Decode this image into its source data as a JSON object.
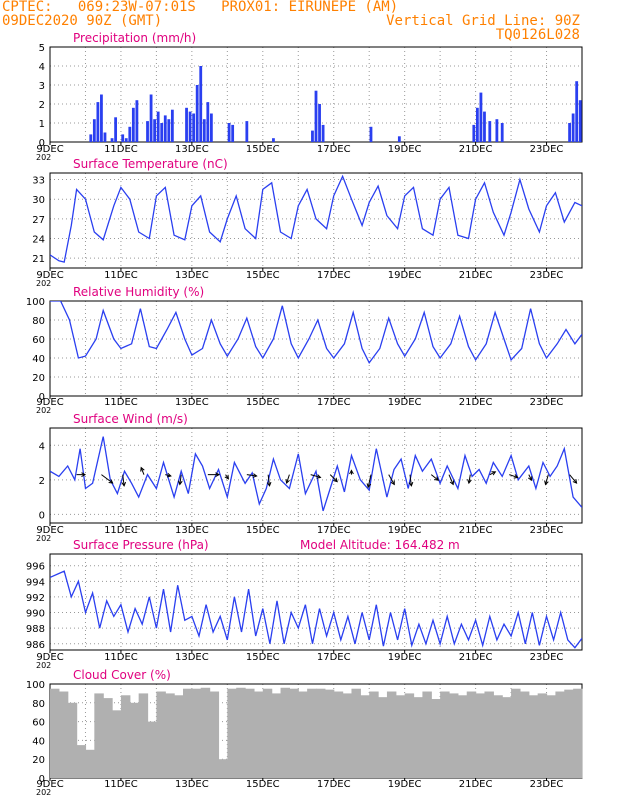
{
  "header": {
    "line1": "CPTEC:   069:23W-07:01S   PROX01: EIRUNEPE (AM)",
    "line2_left": "09DEC2020 90Z (GMT)",
    "line2_right": "Vertical Grid Line: 90Z",
    "line3_right": "TQ0126L028"
  },
  "colors": {
    "header": "#ff8000",
    "title": "#e0007f",
    "line": "#2a3ff0",
    "bar": "#2a3ff0",
    "cloud": "#b0b0b0",
    "grid": "#999999"
  },
  "x_axis": {
    "ticks": [
      "9DEC",
      "11DEC",
      "13DEC",
      "15DEC",
      "17DEC",
      "19DEC",
      "21DEC",
      "23DEC"
    ],
    "days_range": [
      0,
      15
    ],
    "year_fragment": "202"
  },
  "chart_data": [
    {
      "id": "precip",
      "type": "bar",
      "title": "Precipitation (mm/h)",
      "ylim": [
        0,
        5
      ],
      "yticks": [
        0,
        1,
        2,
        3,
        4,
        5
      ],
      "x_unit": "days after 9DEC 00Z",
      "x": [
        1.15,
        1.25,
        1.35,
        1.45,
        1.55,
        1.75,
        1.85,
        2.05,
        2.15,
        2.25,
        2.35,
        2.45,
        2.75,
        2.85,
        2.95,
        3.05,
        3.15,
        3.25,
        3.35,
        3.45,
        3.85,
        3.95,
        4.05,
        4.15,
        4.25,
        4.35,
        4.45,
        4.55,
        5.05,
        5.15,
        5.55,
        6.3,
        7.4,
        7.5,
        7.6,
        7.7,
        9.05,
        9.85,
        11.95,
        12.05,
        12.15,
        12.25,
        12.4,
        12.6,
        12.75,
        14.65,
        14.75,
        14.85,
        14.95
      ],
      "values": [
        0.4,
        1.2,
        2.1,
        2.5,
        0.5,
        0.2,
        1.3,
        0.4,
        0.2,
        0.8,
        1.8,
        2.2,
        1.1,
        2.5,
        1.2,
        1.6,
        1.0,
        1.4,
        1.2,
        1.7,
        1.8,
        1.6,
        1.5,
        3.0,
        4.0,
        1.2,
        2.1,
        1.5,
        1.0,
        0.9,
        1.1,
        0.2,
        0.6,
        2.7,
        2.0,
        0.9,
        0.8,
        0.3,
        0.9,
        1.8,
        2.6,
        1.6,
        1.1,
        1.2,
        1.0,
        1.0,
        1.5,
        3.2,
        2.2
      ]
    },
    {
      "id": "temp",
      "type": "line",
      "title": "Surface Temperature (nC)",
      "ylim": [
        19.5,
        34
      ],
      "yticks": [
        21,
        24,
        27,
        30,
        33
      ],
      "x_unit": "days after 9DEC 00Z",
      "x": [
        0.0,
        0.25,
        0.4,
        0.6,
        0.75,
        1.0,
        1.25,
        1.5,
        1.8,
        2.0,
        2.25,
        2.5,
        2.8,
        3.0,
        3.25,
        3.5,
        3.8,
        4.0,
        4.25,
        4.5,
        4.8,
        5.0,
        5.25,
        5.5,
        5.8,
        6.0,
        6.25,
        6.5,
        6.8,
        7.0,
        7.25,
        7.5,
        7.8,
        8.0,
        8.25,
        8.5,
        8.8,
        9.0,
        9.25,
        9.5,
        9.8,
        10.0,
        10.25,
        10.5,
        10.8,
        11.0,
        11.25,
        11.5,
        11.8,
        12.0,
        12.25,
        12.5,
        12.8,
        13.0,
        13.25,
        13.5,
        13.8,
        14.0,
        14.25,
        14.5,
        14.8,
        15.0
      ],
      "values": [
        21.5,
        20.6,
        20.4,
        26.0,
        31.5,
        30.0,
        25.0,
        23.8,
        29.0,
        31.8,
        30.0,
        25.0,
        24.0,
        30.5,
        31.8,
        24.5,
        23.8,
        29.0,
        30.5,
        25.0,
        23.5,
        27.0,
        30.5,
        25.5,
        24.0,
        31.5,
        32.5,
        25.0,
        24.0,
        29.0,
        31.5,
        27.0,
        25.5,
        30.5,
        33.5,
        30.0,
        26.0,
        29.5,
        32.0,
        27.5,
        25.5,
        30.5,
        31.8,
        25.5,
        24.5,
        30.0,
        31.8,
        24.5,
        24.0,
        30.0,
        32.5,
        28.0,
        24.5,
        28.0,
        33.0,
        28.5,
        25.0,
        29.0,
        31.0,
        26.5,
        29.5,
        29.0
      ]
    },
    {
      "id": "rh",
      "type": "line",
      "title": "Relative Humidity (%)",
      "ylim": [
        0,
        100
      ],
      "yticks": [
        0,
        20,
        40,
        60,
        80,
        100
      ],
      "x_unit": "days after 9DEC 00Z",
      "x": [
        0.0,
        0.3,
        0.55,
        0.8,
        1.0,
        1.3,
        1.5,
        1.8,
        2.0,
        2.3,
        2.55,
        2.8,
        3.0,
        3.3,
        3.55,
        3.8,
        4.0,
        4.3,
        4.55,
        4.8,
        5.0,
        5.3,
        5.55,
        5.8,
        6.0,
        6.3,
        6.55,
        6.8,
        7.0,
        7.3,
        7.55,
        7.8,
        8.0,
        8.3,
        8.55,
        8.8,
        9.0,
        9.3,
        9.55,
        9.8,
        10.0,
        10.3,
        10.55,
        10.8,
        11.0,
        11.3,
        11.55,
        11.8,
        12.0,
        12.3,
        12.55,
        12.8,
        13.0,
        13.3,
        13.55,
        13.8,
        14.0,
        14.3,
        14.55,
        14.8,
        15.0
      ],
      "values": [
        100,
        100,
        80,
        40,
        42,
        60,
        90,
        60,
        50,
        55,
        92,
        52,
        50,
        70,
        88,
        60,
        43,
        50,
        80,
        55,
        42,
        60,
        82,
        52,
        40,
        60,
        95,
        55,
        40,
        60,
        80,
        50,
        40,
        55,
        88,
        50,
        35,
        50,
        82,
        55,
        42,
        60,
        88,
        52,
        40,
        55,
        84,
        52,
        38,
        55,
        88,
        60,
        38,
        50,
        92,
        55,
        40,
        55,
        70,
        55,
        65
      ]
    },
    {
      "id": "wind",
      "type": "line",
      "title": "Surface Wind (m/s)",
      "ylim": [
        -0.5,
        5
      ],
      "yticks": [
        0,
        2,
        4
      ],
      "x_unit": "days after 9DEC 00Z",
      "x": [
        0.0,
        0.25,
        0.5,
        0.7,
        0.85,
        1.0,
        1.2,
        1.5,
        1.7,
        1.9,
        2.1,
        2.3,
        2.5,
        2.75,
        3.0,
        3.2,
        3.5,
        3.7,
        3.9,
        4.1,
        4.3,
        4.5,
        4.75,
        5.0,
        5.2,
        5.5,
        5.7,
        5.9,
        6.1,
        6.3,
        6.5,
        6.75,
        7.0,
        7.2,
        7.5,
        7.7,
        7.9,
        8.1,
        8.3,
        8.5,
        8.75,
        9.0,
        9.2,
        9.5,
        9.7,
        9.9,
        10.1,
        10.3,
        10.5,
        10.75,
        11.0,
        11.2,
        11.5,
        11.7,
        11.9,
        12.1,
        12.3,
        12.5,
        12.75,
        13.0,
        13.2,
        13.5,
        13.7,
        13.9,
        14.1,
        14.3,
        14.5,
        14.75,
        15.0
      ],
      "values": [
        2.5,
        2.2,
        2.8,
        2.0,
        3.8,
        1.5,
        1.8,
        4.5,
        2.0,
        1.2,
        2.5,
        1.8,
        1.0,
        2.3,
        1.5,
        3.0,
        1.0,
        2.5,
        1.2,
        3.5,
        2.8,
        1.5,
        2.6,
        1.0,
        3.0,
        1.8,
        2.4,
        0.6,
        1.5,
        3.2,
        2.0,
        1.5,
        3.5,
        1.2,
        2.5,
        0.2,
        1.5,
        2.8,
        1.3,
        3.4,
        2.0,
        1.4,
        3.8,
        1.0,
        2.6,
        3.2,
        1.5,
        3.4,
        2.5,
        3.2,
        1.8,
        2.8,
        1.5,
        3.4,
        2.2,
        2.6,
        1.8,
        3.0,
        2.2,
        3.4,
        2.0,
        2.8,
        1.5,
        3.0,
        2.2,
        2.8,
        3.8,
        1.0,
        0.4
      ],
      "vectors_x": [
        0.75,
        1.45,
        2.05,
        2.65,
        3.25,
        3.7,
        4.45,
        4.95,
        5.55,
        6.15,
        6.75,
        7.35,
        7.9,
        8.5,
        9.05,
        9.55,
        10.15,
        10.75,
        11.25,
        11.85,
        12.4,
        12.95,
        13.5,
        14.05,
        14.65
      ],
      "vectors_u": [
        0.6,
        0.8,
        0.1,
        -0.2,
        0.4,
        -0.1,
        0.8,
        0.2,
        0.7,
        0.1,
        -0.2,
        0.7,
        0.5,
        0.0,
        -0.2,
        0.4,
        0.1,
        0.5,
        0.3,
        -0.1,
        0.4,
        0.6,
        0.2,
        -0.2,
        0.5
      ],
      "vectors_v": [
        0.0,
        -0.6,
        -0.8,
        0.5,
        -0.1,
        -0.7,
        0.0,
        -0.3,
        -0.1,
        -0.8,
        -0.6,
        -0.2,
        -0.5,
        0.3,
        -0.9,
        -0.7,
        -0.8,
        -0.4,
        -0.7,
        -0.6,
        0.2,
        -0.2,
        -0.4,
        -0.7,
        -0.6
      ]
    },
    {
      "id": "pres",
      "type": "line",
      "title": "Surface Pressure (hPa)",
      "subtitle": "Model Altitude: 164.482  m",
      "ylim": [
        985.2,
        997.5
      ],
      "yticks": [
        986,
        988,
        990,
        992,
        994,
        996
      ],
      "x_unit": "days after 9DEC 00Z",
      "x": [
        0.0,
        0.25,
        0.4,
        0.6,
        0.8,
        1.0,
        1.2,
        1.4,
        1.6,
        1.8,
        2.0,
        2.2,
        2.4,
        2.6,
        2.8,
        3.0,
        3.2,
        3.4,
        3.6,
        3.8,
        4.0,
        4.2,
        4.4,
        4.6,
        4.8,
        5.0,
        5.2,
        5.4,
        5.6,
        5.8,
        6.0,
        6.2,
        6.4,
        6.6,
        6.8,
        7.0,
        7.2,
        7.4,
        7.6,
        7.8,
        8.0,
        8.2,
        8.4,
        8.6,
        8.8,
        9.0,
        9.2,
        9.4,
        9.6,
        9.8,
        10.0,
        10.2,
        10.4,
        10.6,
        10.8,
        11.0,
        11.2,
        11.4,
        11.6,
        11.8,
        12.0,
        12.2,
        12.4,
        12.6,
        12.8,
        13.0,
        13.2,
        13.4,
        13.6,
        13.8,
        14.0,
        14.2,
        14.4,
        14.6,
        14.8,
        15.0
      ],
      "values": [
        994.5,
        995.0,
        995.3,
        992.0,
        994.0,
        990.0,
        992.5,
        988.0,
        991.5,
        989.5,
        991.0,
        987.5,
        990.5,
        988.5,
        992.0,
        988.0,
        993.0,
        987.5,
        993.5,
        989.0,
        989.5,
        987.0,
        991.0,
        987.5,
        989.5,
        986.5,
        992.0,
        987.5,
        993.0,
        987.0,
        990.5,
        986.0,
        991.5,
        986.0,
        990.0,
        988.0,
        991.0,
        986.0,
        990.5,
        987.0,
        990.0,
        986.5,
        989.5,
        986.0,
        990.0,
        986.5,
        991.0,
        985.7,
        990.0,
        986.5,
        990.5,
        985.8,
        988.5,
        986.0,
        989.0,
        986.0,
        989.5,
        986.0,
        988.5,
        986.5,
        989.0,
        985.8,
        989.5,
        986.5,
        988.5,
        987.0,
        990.0,
        986.0,
        990.0,
        985.8,
        989.5,
        986.5,
        990.0,
        986.5,
        985.5,
        986.7
      ]
    },
    {
      "id": "cloud",
      "type": "bar",
      "title": "Cloud Cover (%)",
      "ylim": [
        0,
        100
      ],
      "yticks": [
        0,
        20,
        40,
        60,
        80,
        100
      ],
      "x_unit": "days after 9DEC 00Z",
      "x": [
        0.0,
        0.25,
        0.5,
        0.75,
        1.0,
        1.25,
        1.5,
        1.75,
        2.0,
        2.25,
        2.5,
        2.75,
        3.0,
        3.25,
        3.5,
        3.75,
        4.0,
        4.25,
        4.5,
        4.75,
        5.0,
        5.25,
        5.5,
        5.75,
        6.0,
        6.25,
        6.5,
        6.75,
        7.0,
        7.25,
        7.5,
        7.75,
        8.0,
        8.25,
        8.5,
        8.75,
        9.0,
        9.25,
        9.5,
        9.75,
        10.0,
        10.25,
        10.5,
        10.75,
        11.0,
        11.25,
        11.5,
        11.75,
        12.0,
        12.25,
        12.5,
        12.75,
        13.0,
        13.25,
        13.5,
        13.75,
        14.0,
        14.25,
        14.5,
        14.75
      ],
      "values": [
        95,
        92,
        80,
        35,
        30,
        90,
        85,
        72,
        88,
        80,
        90,
        60,
        92,
        90,
        88,
        95,
        95,
        96,
        92,
        20,
        95,
        96,
        95,
        92,
        95,
        90,
        96,
        95,
        92,
        95,
        95,
        94,
        92,
        90,
        95,
        88,
        92,
        86,
        92,
        88,
        90,
        86,
        92,
        84,
        92,
        90,
        88,
        92,
        90,
        92,
        88,
        86,
        95,
        92,
        88,
        90,
        88,
        92,
        94,
        95
      ]
    }
  ]
}
